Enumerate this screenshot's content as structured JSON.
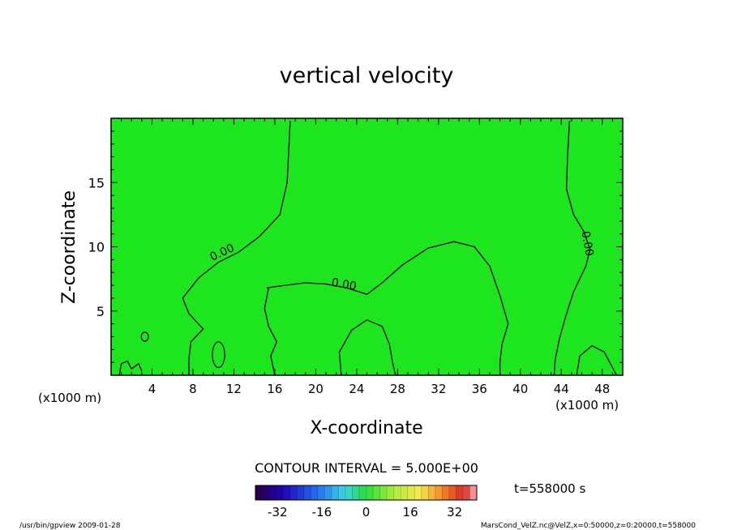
{
  "chart_data": {
    "type": "heatmap",
    "title": "vertical velocity",
    "xlabel": "X-coordinate",
    "ylabel": "Z-coordinate",
    "x_unit": "(x1000 m)",
    "xlim": [
      0,
      50
    ],
    "ylim": [
      0,
      20
    ],
    "x_ticks": [
      4,
      8,
      12,
      16,
      20,
      24,
      28,
      32,
      36,
      40,
      44,
      48
    ],
    "y_ticks": [
      5,
      10,
      15
    ],
    "field_background_color": "#1ee61e",
    "contour_interval_label": "CONTOUR INTERVAL = 5.000E+00",
    "contour_labels": [
      {
        "text": "0.00",
        "x": 11,
        "z": 9.3
      },
      {
        "text": "0.00",
        "x": 22.7,
        "z": 6.8
      },
      {
        "text": "0.00",
        "x": 46.2,
        "z": 10.2
      }
    ],
    "contour_lines": [
      {
        "name": "left-branch",
        "points": [
          [
            17.5,
            19.8
          ],
          [
            17.2,
            15
          ],
          [
            16.5,
            12.5
          ],
          [
            14.5,
            10.8
          ],
          [
            12.5,
            9.6
          ],
          [
            10.5,
            8.8
          ],
          [
            8.6,
            7.6
          ],
          [
            7.0,
            6.0
          ],
          [
            7.6,
            4.8
          ],
          [
            9.0,
            3.6
          ],
          [
            7.8,
            2.6
          ],
          [
            7.6,
            1.2
          ],
          [
            7.6,
            0
          ]
        ]
      },
      {
        "name": "dome",
        "points": [
          [
            15.2,
            6.8
          ],
          [
            17.0,
            7.0
          ],
          [
            19.0,
            7.2
          ],
          [
            21.0,
            7.1
          ],
          [
            23.0,
            6.8
          ],
          [
            25.0,
            6.3
          ],
          [
            26.5,
            7.2
          ],
          [
            28.5,
            8.6
          ],
          [
            31.0,
            9.9
          ],
          [
            33.5,
            10.4
          ],
          [
            35.5,
            10.0
          ],
          [
            37.0,
            8.5
          ],
          [
            38.0,
            6.2
          ],
          [
            38.8,
            4.0
          ],
          [
            38.2,
            2.4
          ],
          [
            38.0,
            1.0
          ],
          [
            38.0,
            0
          ]
        ]
      },
      {
        "name": "right-branch",
        "points": [
          [
            44.8,
            19.8
          ],
          [
            44.6,
            17.0
          ],
          [
            44.5,
            14.5
          ],
          [
            45.2,
            12.5
          ],
          [
            46.2,
            11.2
          ],
          [
            46.8,
            9.8
          ],
          [
            46.4,
            8.5
          ],
          [
            45.2,
            6.5
          ],
          [
            44.4,
            4.5
          ],
          [
            43.8,
            2.8
          ],
          [
            43.4,
            1.2
          ],
          [
            43.3,
            0
          ]
        ]
      },
      {
        "name": "left-lower",
        "points": [
          [
            15.4,
            6.8
          ],
          [
            15.0,
            5.2
          ],
          [
            15.4,
            3.8
          ],
          [
            16.2,
            2.6
          ],
          [
            15.6,
            1.5
          ],
          [
            16.0,
            0
          ]
        ]
      },
      {
        "name": "mid-bump",
        "points": [
          [
            22.5,
            0
          ],
          [
            22.3,
            1.8
          ],
          [
            23.5,
            3.5
          ],
          [
            25.0,
            4.3
          ],
          [
            26.5,
            3.8
          ],
          [
            27.2,
            2.4
          ],
          [
            27.5,
            1.0
          ],
          [
            27.8,
            0
          ]
        ]
      },
      {
        "name": "left-edge-wiggle",
        "points": [
          [
            0.8,
            0
          ],
          [
            1.0,
            0.9
          ],
          [
            1.6,
            1.1
          ],
          [
            2.0,
            0.5
          ],
          [
            2.7,
            0.9
          ],
          [
            3.0,
            0.3
          ]
        ]
      },
      {
        "name": "right-edge-bump",
        "points": [
          [
            45.5,
            0
          ],
          [
            45.8,
            1.5
          ],
          [
            47.0,
            2.3
          ],
          [
            48.2,
            1.8
          ],
          [
            49.0,
            0.6
          ],
          [
            49.4,
            0
          ]
        ]
      }
    ],
    "closed_contours": [
      {
        "name": "positive-cell",
        "cx": 10.5,
        "cz": 1.6,
        "rx": 0.6,
        "rz": 1.0
      },
      {
        "name": "small-cell",
        "cx": 3.3,
        "cz": 3.0,
        "rx": 0.35,
        "rz": 0.35
      }
    ],
    "colorbar": {
      "min": -40,
      "max": 40,
      "step": 2.5,
      "tick_labels": [
        "-32",
        "-16",
        "0",
        "16",
        "32"
      ],
      "tick_values": [
        -32,
        -16,
        0,
        16,
        32
      ]
    }
  },
  "footer": {
    "time_label": "t=558000 s",
    "left_note": "/usr/bin/gpview   2009-01-28",
    "right_note": "MarsCond_VelZ.nc@VelZ,x=0:50000,z=0:20000,t=558000"
  }
}
